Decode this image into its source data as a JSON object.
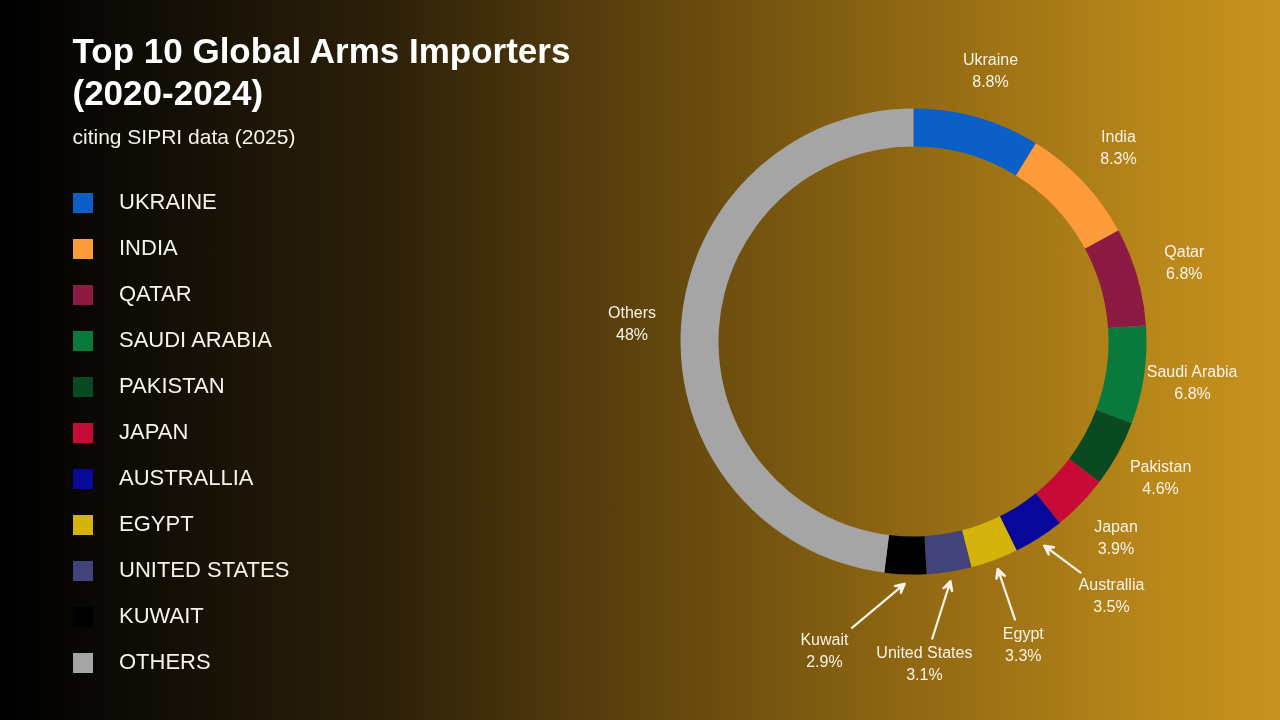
{
  "chart_data": {
    "type": "donut",
    "title": "Top 10 Global Arms Importers (2020-2024)",
    "subtitle": "citing SIPRI data (2025)",
    "categories": [
      "UKRAINE",
      "INDIA",
      "QATAR",
      "SAUDI ARABIA",
      "PAKISTAN",
      "JAPAN",
      "AUSTRALLIA",
      "EGYPT",
      "UNITED STATES",
      "KUWAIT",
      "OTHERS"
    ],
    "values": [
      8.8,
      8.3,
      6.8,
      6.8,
      4.6,
      3.9,
      3.5,
      3.3,
      3.1,
      2.9,
      48
    ],
    "colors": [
      "#0b5fc6",
      "#fd9a3a",
      "#8c1a42",
      "#0a7a3c",
      "#0a4a22",
      "#c80a36",
      "#08089a",
      "#d4b40a",
      "#42437a",
      "#000000",
      "#a5a5a5"
    ],
    "value_labels": [
      "Ukraine\n8.8%",
      "India\n8.3%",
      "Qatar\n6.8%",
      "Saudi Arabia\n6.8%",
      "Pakistan\n4.6%",
      "Japan\n3.9%",
      "Australlia\n3.5%",
      "Egypt\n3.3%",
      "United States\n3.1%",
      "Kuwait\n2.9%",
      "Others\n48%"
    ],
    "legend": "left"
  }
}
